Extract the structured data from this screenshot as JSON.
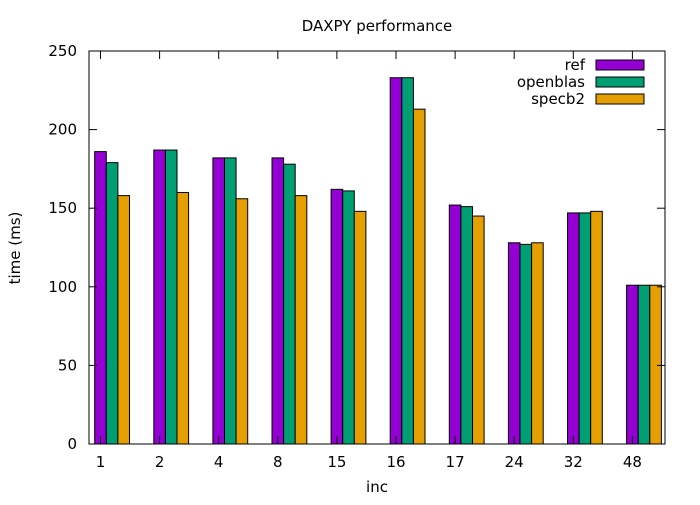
{
  "chart_data": {
    "type": "bar",
    "title": "DAXPY performance",
    "xlabel": "inc",
    "ylabel": "time (ms)",
    "ylim": [
      0,
      250
    ],
    "yticks": [
      0,
      50,
      100,
      150,
      200,
      250
    ],
    "grid": false,
    "legend_position": "top-right",
    "categories": [
      "1",
      "2",
      "4",
      "8",
      "15",
      "16",
      "17",
      "24",
      "32",
      "48"
    ],
    "series": [
      {
        "name": "ref",
        "color": "#9400D3",
        "values": [
          186,
          187,
          182,
          182,
          162,
          233,
          152,
          128,
          147,
          101
        ]
      },
      {
        "name": "openblas",
        "color": "#009E73",
        "values": [
          179,
          187,
          182,
          178,
          161,
          233,
          151,
          127,
          147,
          101
        ]
      },
      {
        "name": "specb2",
        "color": "#E69F00",
        "values": [
          158,
          160,
          156,
          158,
          148,
          213,
          145,
          128,
          148,
          101
        ]
      }
    ]
  }
}
